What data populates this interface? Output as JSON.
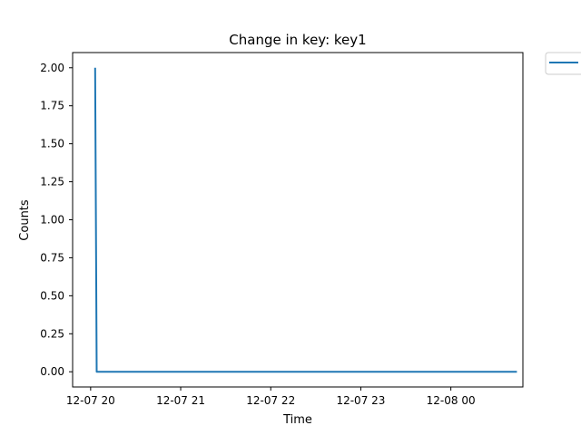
{
  "chart_data": {
    "type": "line",
    "title": "Change in key: key1",
    "xlabel": "Time",
    "ylabel": "Counts",
    "x_type": "datetime",
    "xlim": [
      "2021-12-07 19:48",
      "2021-12-08 00:48"
    ],
    "ylim": [
      -0.1,
      2.1
    ],
    "xticks": [
      {
        "value": "2021-12-07 20:00",
        "label": "12-07 20"
      },
      {
        "value": "2021-12-07 21:00",
        "label": "12-07 21"
      },
      {
        "value": "2021-12-07 22:00",
        "label": "12-07 22"
      },
      {
        "value": "2021-12-07 23:00",
        "label": "12-07 23"
      },
      {
        "value": "2021-12-08 00:00",
        "label": "12-08 00"
      }
    ],
    "yticks": [
      {
        "value": 0.0,
        "label": "0.00"
      },
      {
        "value": 0.25,
        "label": "0.25"
      },
      {
        "value": 0.5,
        "label": "0.50"
      },
      {
        "value": 0.75,
        "label": "0.75"
      },
      {
        "value": 1.0,
        "label": "1.00"
      },
      {
        "value": 1.25,
        "label": "1.25"
      },
      {
        "value": 1.5,
        "label": "1.50"
      },
      {
        "value": 1.75,
        "label": "1.75"
      },
      {
        "value": 2.0,
        "label": "2.00"
      }
    ],
    "grid": false,
    "legend": "outside-top-right",
    "series": [
      {
        "color": "#1f77b4",
        "points": [
          {
            "x": "2021-12-07 20:03",
            "y": 2.0
          },
          {
            "x": "2021-12-07 20:04",
            "y": 0.0
          },
          {
            "x": "2021-12-08 00:44",
            "y": 0.0
          }
        ]
      }
    ]
  }
}
